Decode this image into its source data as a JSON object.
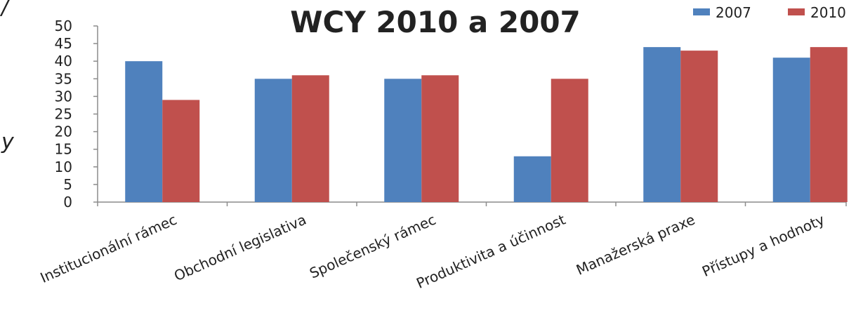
{
  "chart_data": {
    "type": "bar",
    "title": "WCY 2010 a 2007",
    "categories": [
      "Institucionální rámec",
      "Obchodní legislativa",
      "Společenský rámec",
      "Produktivita a účinnost",
      "Manažerská praxe",
      "Přístupy a hodnoty"
    ],
    "series": [
      {
        "name": "2007",
        "color": "#4f81bd",
        "values": [
          40,
          35,
          35,
          13,
          44,
          41
        ]
      },
      {
        "name": "2010",
        "color": "#c0504d",
        "values": [
          29,
          36,
          36,
          35,
          43,
          44
        ]
      }
    ],
    "y_ticks": [
      "0",
      "5",
      "10",
      "15",
      "20",
      "25",
      "30",
      "35",
      "40",
      "45",
      "50"
    ],
    "ylim": [
      0,
      50
    ],
    "grid": false,
    "legend_position": "top-right",
    "xlabel": "",
    "ylabel": ""
  },
  "edge_text": {
    "top": "/",
    "middle": "y"
  }
}
